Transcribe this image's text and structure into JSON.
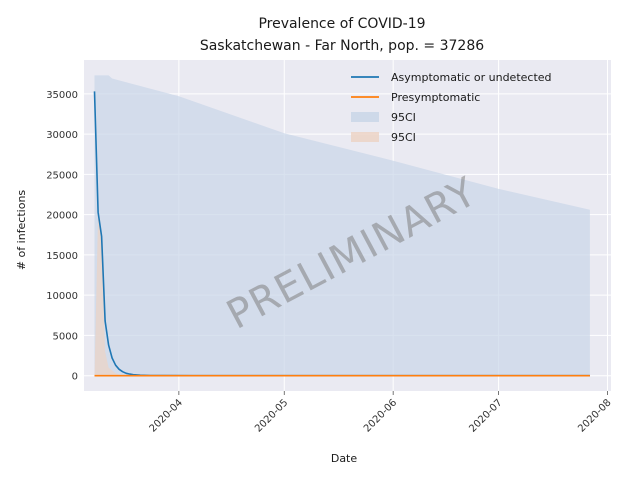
{
  "chart_data": {
    "type": "line",
    "title": "Prevalence of COVID-19",
    "subtitle": "Saskatchewan - Far North, pop. = 37286",
    "xlabel": "Date",
    "ylabel": "# of infections",
    "x_tick_labels": [
      "2020-04",
      "2020-05",
      "2020-06",
      "2020-07",
      "2020-08"
    ],
    "x_tick_dates": [
      "2020-04-01",
      "2020-05-01",
      "2020-06-01",
      "2020-07-01",
      "2020-08-01"
    ],
    "xlim": [
      "2020-03-05",
      "2020-08-02"
    ],
    "y_ticks": [
      0,
      5000,
      10000,
      15000,
      20000,
      25000,
      30000,
      35000
    ],
    "ylim": [
      -1900,
      39200
    ],
    "grid": true,
    "legend_position": "top-right",
    "watermark": "PRELIMINARY",
    "colors": {
      "asymptomatic": "#1f77b4",
      "presymptomatic": "#ff7f0e",
      "band_blue": "#c9d6e8",
      "band_orange": "#ecd3c5",
      "background": "#eaeaf2",
      "grid": "#ffffff"
    },
    "series": [
      {
        "name": "Asymptomatic or undetected",
        "x": [
          "2020-03-08",
          "2020-03-09",
          "2020-03-10",
          "2020-03-11",
          "2020-03-12",
          "2020-03-13",
          "2020-03-14",
          "2020-03-15",
          "2020-03-16",
          "2020-03-17",
          "2020-03-18",
          "2020-03-19",
          "2020-03-21",
          "2020-03-24",
          "2020-03-28",
          "2020-04-05",
          "2020-05-01",
          "2020-06-01",
          "2020-07-01",
          "2020-07-27"
        ],
        "values": [
          35300,
          20300,
          17300,
          6800,
          3800,
          2200,
          1300,
          800,
          500,
          300,
          200,
          120,
          60,
          20,
          8,
          0,
          0,
          0,
          0,
          0
        ]
      },
      {
        "name": "Presymptomatic",
        "x": [
          "2020-03-08",
          "2020-03-15",
          "2020-04-01",
          "2020-05-01",
          "2020-06-01",
          "2020-07-01",
          "2020-07-27"
        ],
        "values": [
          0,
          0,
          0,
          0,
          0,
          0,
          0
        ]
      }
    ],
    "bands": [
      {
        "name": "95CI",
        "x": [
          "2020-03-08",
          "2020-03-09",
          "2020-03-12",
          "2020-03-13",
          "2020-04-01",
          "2020-05-01",
          "2020-06-01",
          "2020-07-01",
          "2020-07-27"
        ],
        "lower": [
          0,
          0,
          0,
          0,
          0,
          0,
          0,
          0,
          0
        ],
        "upper": [
          37286,
          37286,
          37286,
          36900,
          34700,
          30100,
          26700,
          23200,
          20600
        ]
      },
      {
        "name": "95CI",
        "x": [
          "2020-03-08",
          "2020-03-09",
          "2020-03-10",
          "2020-03-11",
          "2020-03-12",
          "2020-03-14",
          "2020-03-16"
        ],
        "lower": [
          0,
          0,
          0,
          0,
          0,
          0,
          0
        ],
        "upper": [
          0,
          20000,
          17000,
          3000,
          1000,
          300,
          0
        ]
      }
    ]
  }
}
